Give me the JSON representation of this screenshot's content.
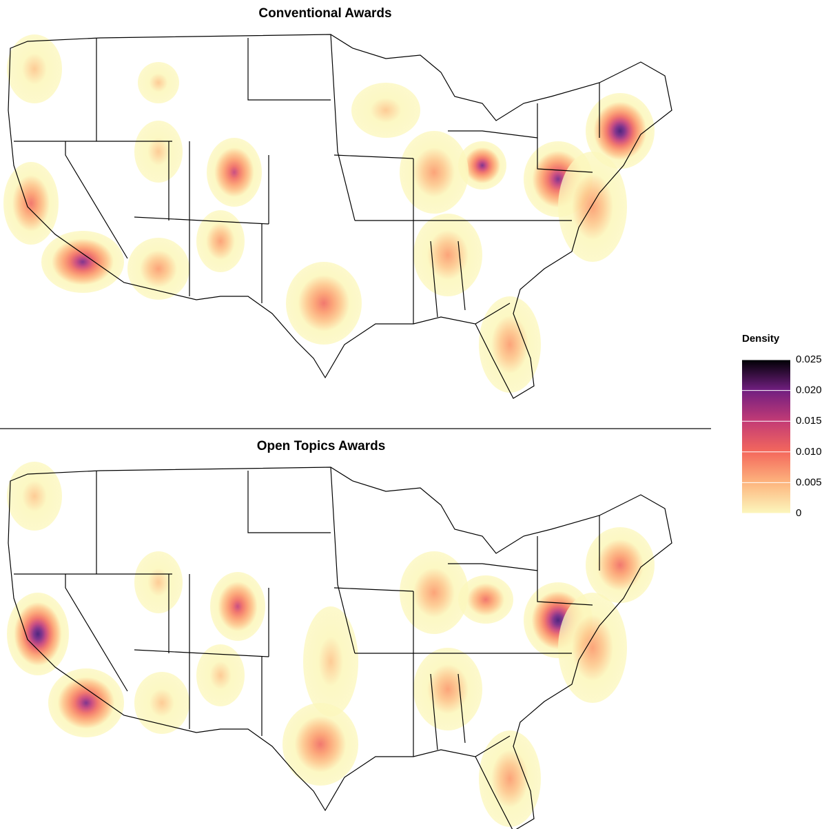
{
  "panels": [
    {
      "title": "Conventional Awards"
    },
    {
      "title": "Open Topics Awards"
    }
  ],
  "legend": {
    "title": "Density",
    "lim": [
      0,
      0.025
    ],
    "ticks": [
      0,
      0.005,
      {
        "value": 0.01,
        "label": "0.010"
      },
      0.015,
      {
        "value": 0.02,
        "label": "0.020"
      },
      0.025
    ]
  }
}
